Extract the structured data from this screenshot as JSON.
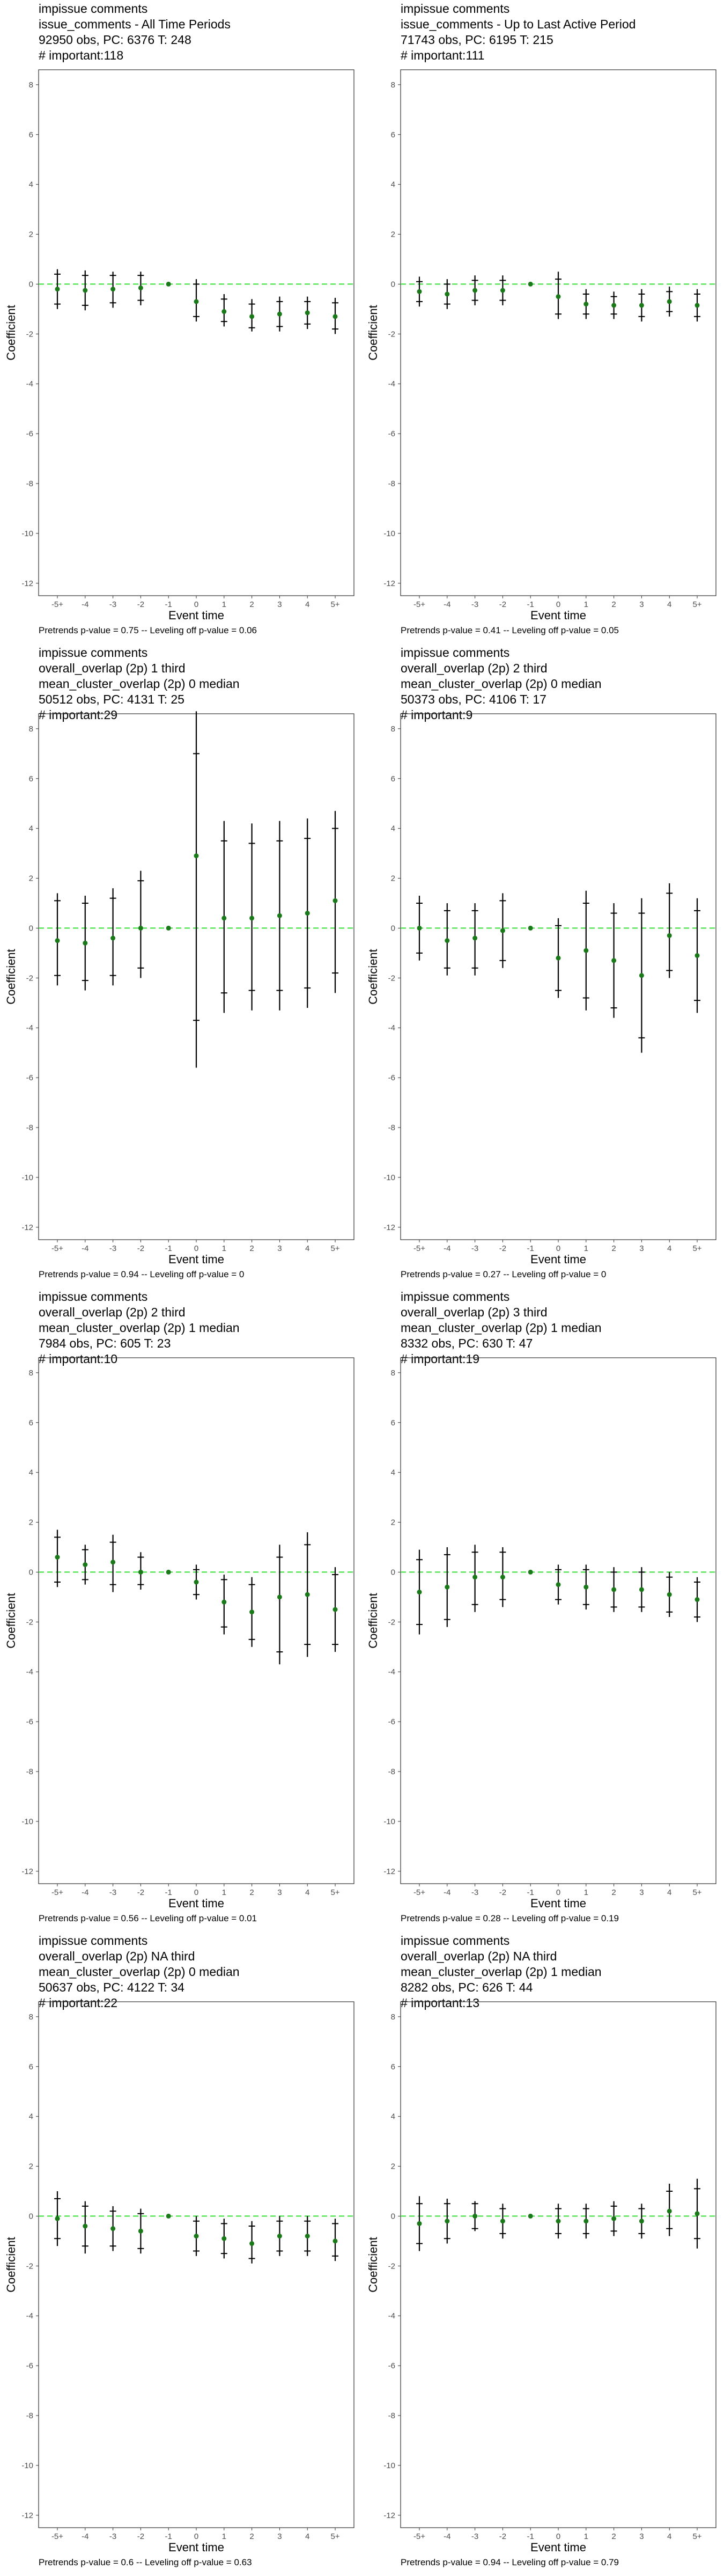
{
  "chart_data": [
    {
      "type": "scatter",
      "title": "impissue comments",
      "subtitle": [
        "issue_comments - All Time Periods",
        "92950 obs, PC: 6376 T: 248",
        "# important:118"
      ],
      "xlabel": "Event time",
      "ylabel": "Coefficient",
      "categories": [
        "-5+",
        "-4",
        "-3",
        "-2",
        "-1",
        "0",
        "1",
        "2",
        "3",
        "4",
        "5+"
      ],
      "yticks": [
        8,
        6,
        4,
        2,
        0,
        -2,
        -4,
        -6,
        -8,
        -10,
        -12
      ],
      "ylim": [
        -12.5,
        8.6
      ],
      "reference_line": 0,
      "series": [
        {
          "estimate": [
            -0.2,
            -0.25,
            -0.2,
            -0.15,
            0,
            -0.7,
            -1.1,
            -1.3,
            -1.2,
            -1.15,
            -1.3
          ],
          "ci_low": [
            -1.0,
            -1.05,
            -0.95,
            -0.85,
            0,
            -1.5,
            -1.7,
            -1.9,
            -1.9,
            -1.8,
            -2.0
          ],
          "ci_high": [
            0.6,
            0.55,
            0.5,
            0.5,
            0,
            0.2,
            -0.4,
            -0.6,
            -0.5,
            -0.5,
            -0.55
          ],
          "ci90_low": [
            -0.8,
            -0.85,
            -0.75,
            -0.65,
            0,
            -1.3,
            -1.5,
            -1.75,
            -1.7,
            -1.6,
            -1.8
          ],
          "ci90_high": [
            0.4,
            0.35,
            0.35,
            0.35,
            0,
            0.0,
            -0.6,
            -0.8,
            -0.7,
            -0.7,
            -0.75
          ]
        }
      ],
      "footer": "Pretrends p-value = 0.75 -- Leveling off p-value = 0.06"
    },
    {
      "type": "scatter",
      "title": "impissue comments",
      "subtitle": [
        "issue_comments - Up to Last Active Period",
        "71743 obs, PC: 6195 T: 215",
        "# important:111"
      ],
      "xlabel": "Event time",
      "ylabel": "Coefficient",
      "categories": [
        "-5+",
        "-4",
        "-3",
        "-2",
        "-1",
        "0",
        "1",
        "2",
        "3",
        "4",
        "5+"
      ],
      "yticks": [
        8,
        6,
        4,
        2,
        0,
        -2,
        -4,
        -6,
        -8,
        -10,
        -12
      ],
      "ylim": [
        -12.5,
        8.6
      ],
      "reference_line": 0,
      "series": [
        {
          "estimate": [
            -0.3,
            -0.4,
            -0.25,
            -0.25,
            0,
            -0.5,
            -0.8,
            -0.85,
            -0.85,
            -0.7,
            -0.85
          ],
          "ci_low": [
            -0.9,
            -1.0,
            -0.85,
            -0.85,
            0,
            -1.4,
            -1.4,
            -1.4,
            -1.5,
            -1.3,
            -1.5
          ],
          "ci_high": [
            0.3,
            0.2,
            0.35,
            0.35,
            0,
            0.5,
            -0.2,
            -0.3,
            -0.2,
            -0.1,
            -0.2
          ],
          "ci90_low": [
            -0.7,
            -0.8,
            -0.65,
            -0.65,
            0,
            -1.2,
            -1.2,
            -1.2,
            -1.3,
            -1.1,
            -1.3
          ],
          "ci90_high": [
            0.1,
            0.0,
            0.15,
            0.15,
            0,
            0.2,
            -0.4,
            -0.5,
            -0.4,
            -0.3,
            -0.4
          ]
        }
      ],
      "footer": "Pretrends p-value = 0.41 -- Leveling off p-value = 0.05"
    },
    {
      "type": "scatter",
      "title": "impissue comments",
      "subtitle": [
        "overall_overlap (2p) 1 third",
        "mean_cluster_overlap (2p) 0 median",
        "50512 obs, PC: 4131 T: 25",
        "# important:29"
      ],
      "xlabel": "Event time",
      "ylabel": "Coefficient",
      "categories": [
        "-5+",
        "-4",
        "-3",
        "-2",
        "-1",
        "0",
        "1",
        "2",
        "3",
        "4",
        "5+"
      ],
      "yticks": [
        8,
        6,
        4,
        2,
        0,
        -2,
        -4,
        -6,
        -8,
        -10,
        -12
      ],
      "ylim": [
        -12.5,
        8.6
      ],
      "reference_line": 0,
      "series": [
        {
          "estimate": [
            -0.5,
            -0.6,
            -0.4,
            0.0,
            0,
            2.9,
            0.4,
            0.4,
            0.5,
            0.6,
            1.1
          ],
          "ci_low": [
            -2.3,
            -2.5,
            -2.3,
            -2.0,
            0,
            -5.6,
            -3.4,
            -3.3,
            -3.3,
            -3.2,
            -2.6
          ],
          "ci_high": [
            1.4,
            1.3,
            1.6,
            2.3,
            0,
            8.7,
            4.3,
            4.2,
            4.3,
            4.4,
            4.7
          ],
          "ci90_low": [
            -1.9,
            -2.1,
            -1.9,
            -1.6,
            0,
            -3.7,
            -2.6,
            -2.5,
            -2.5,
            -2.4,
            -1.8
          ],
          "ci90_high": [
            1.1,
            1.0,
            1.2,
            1.9,
            0,
            7.0,
            3.5,
            3.4,
            3.5,
            3.6,
            4.0
          ]
        }
      ],
      "footer": "Pretrends p-value = 0.94 -- Leveling off p-value = 0"
    },
    {
      "type": "scatter",
      "title": "impissue comments",
      "subtitle": [
        "overall_overlap (2p) 2 third",
        "mean_cluster_overlap (2p) 0 median",
        "50373 obs, PC: 4106 T: 17",
        "# important:9"
      ],
      "xlabel": "Event time",
      "ylabel": "Coefficient",
      "categories": [
        "-5+",
        "-4",
        "-3",
        "-2",
        "-1",
        "0",
        "1",
        "2",
        "3",
        "4",
        "5+"
      ],
      "yticks": [
        8,
        6,
        4,
        2,
        0,
        -2,
        -4,
        -6,
        -8,
        -10,
        -12
      ],
      "ylim": [
        -12.5,
        8.6
      ],
      "reference_line": 0,
      "series": [
        {
          "estimate": [
            0.0,
            -0.5,
            -0.4,
            -0.1,
            0,
            -1.2,
            -0.9,
            -1.3,
            -1.9,
            -0.3,
            -1.1
          ],
          "ci_low": [
            -1.3,
            -1.9,
            -1.9,
            -1.6,
            0,
            -2.8,
            -3.3,
            -3.6,
            -5.0,
            -2.0,
            -3.4
          ],
          "ci_high": [
            1.3,
            1.0,
            1.0,
            1.4,
            0,
            0.4,
            1.5,
            1.0,
            1.2,
            1.8,
            1.2
          ],
          "ci90_low": [
            -1.0,
            -1.6,
            -1.6,
            -1.3,
            0,
            -2.5,
            -2.8,
            -3.2,
            -4.4,
            -1.7,
            -2.9
          ],
          "ci90_high": [
            1.0,
            0.7,
            0.7,
            1.1,
            0,
            0.1,
            1.0,
            0.6,
            0.6,
            1.4,
            0.7
          ]
        }
      ],
      "footer": "Pretrends p-value = 0.27 -- Leveling off p-value = 0"
    },
    {
      "type": "scatter",
      "title": "impissue comments",
      "subtitle": [
        "overall_overlap (2p) 2 third",
        "mean_cluster_overlap (2p) 1 median",
        "7984 obs, PC: 605 T: 23",
        "# important:10"
      ],
      "xlabel": "Event time",
      "ylabel": "Coefficient",
      "categories": [
        "-5+",
        "-4",
        "-3",
        "-2",
        "-1",
        "0",
        "1",
        "2",
        "3",
        "4",
        "5+"
      ],
      "yticks": [
        8,
        6,
        4,
        2,
        0,
        -2,
        -4,
        -6,
        -8,
        -10,
        -12
      ],
      "ylim": [
        -12.5,
        8.6
      ],
      "reference_line": 0,
      "series": [
        {
          "estimate": [
            0.6,
            0.3,
            0.4,
            0.0,
            0,
            -0.4,
            -1.2,
            -1.6,
            -1.0,
            -0.9,
            -1.5
          ],
          "ci_low": [
            -0.6,
            -0.5,
            -0.8,
            -0.7,
            0,
            -1.1,
            -2.5,
            -3.0,
            -3.7,
            -3.4,
            -3.2
          ],
          "ci_high": [
            1.7,
            1.1,
            1.5,
            0.8,
            0,
            0.3,
            -0.1,
            -0.2,
            1.1,
            1.6,
            0.2
          ],
          "ci90_low": [
            -0.4,
            -0.3,
            -0.5,
            -0.5,
            0,
            -0.9,
            -2.2,
            -2.7,
            -3.2,
            -2.9,
            -2.9
          ],
          "ci90_high": [
            1.4,
            0.9,
            1.2,
            0.6,
            0,
            0.1,
            -0.3,
            -0.5,
            0.6,
            1.1,
            -0.1
          ]
        }
      ],
      "footer": "Pretrends p-value = 0.56 -- Leveling off p-value = 0.01"
    },
    {
      "type": "scatter",
      "title": "impissue comments",
      "subtitle": [
        "overall_overlap (2p) 3 third",
        "mean_cluster_overlap (2p) 1 median",
        "8332 obs, PC: 630 T: 47",
        "# important:19"
      ],
      "xlabel": "Event time",
      "ylabel": "Coefficient",
      "categories": [
        "-5+",
        "-4",
        "-3",
        "-2",
        "-1",
        "0",
        "1",
        "2",
        "3",
        "4",
        "5+"
      ],
      "yticks": [
        8,
        6,
        4,
        2,
        0,
        -2,
        -4,
        -6,
        -8,
        -10,
        -12
      ],
      "ylim": [
        -12.5,
        8.6
      ],
      "reference_line": 0,
      "series": [
        {
          "estimate": [
            -0.8,
            -0.6,
            -0.2,
            -0.2,
            0,
            -0.5,
            -0.6,
            -0.7,
            -0.7,
            -0.9,
            -1.1
          ],
          "ci_low": [
            -2.5,
            -2.2,
            -1.6,
            -1.4,
            0,
            -1.3,
            -1.5,
            -1.6,
            -1.6,
            -1.8,
            -2.0
          ],
          "ci_high": [
            0.9,
            1.0,
            1.1,
            1.0,
            0,
            0.3,
            0.3,
            0.2,
            0.2,
            0.0,
            -0.2
          ],
          "ci90_low": [
            -2.1,
            -1.9,
            -1.3,
            -1.1,
            0,
            -1.1,
            -1.3,
            -1.4,
            -1.4,
            -1.6,
            -1.8
          ],
          "ci90_high": [
            0.5,
            0.7,
            0.8,
            0.8,
            0,
            0.1,
            0.1,
            0.0,
            0.0,
            -0.2,
            -0.4
          ]
        }
      ],
      "footer": "Pretrends p-value = 0.28 -- Leveling off p-value = 0.19"
    },
    {
      "type": "scatter",
      "title": "impissue comments",
      "subtitle": [
        "overall_overlap (2p) NA third",
        "mean_cluster_overlap (2p) 0 median",
        "50637 obs, PC: 4122 T: 34",
        "# important:22"
      ],
      "xlabel": "Event time",
      "ylabel": "Coefficient",
      "categories": [
        "-5+",
        "-4",
        "-3",
        "-2",
        "-1",
        "0",
        "1",
        "2",
        "3",
        "4",
        "5+"
      ],
      "yticks": [
        8,
        6,
        4,
        2,
        0,
        -2,
        -4,
        -6,
        -8,
        -10,
        -12
      ],
      "ylim": [
        -12.5,
        8.6
      ],
      "reference_line": 0,
      "series": [
        {
          "estimate": [
            -0.1,
            -0.4,
            -0.5,
            -0.6,
            0,
            -0.8,
            -0.9,
            -1.1,
            -0.8,
            -0.8,
            -1.0
          ],
          "ci_low": [
            -1.2,
            -1.5,
            -1.4,
            -1.5,
            0,
            -1.6,
            -1.7,
            -1.9,
            -1.6,
            -1.6,
            -1.8
          ],
          "ci_high": [
            1.0,
            0.6,
            0.4,
            0.3,
            0,
            0.0,
            -0.1,
            -0.2,
            0.0,
            0.0,
            -0.1
          ],
          "ci90_low": [
            -0.9,
            -1.2,
            -1.2,
            -1.3,
            0,
            -1.4,
            -1.5,
            -1.7,
            -1.4,
            -1.4,
            -1.6
          ],
          "ci90_high": [
            0.7,
            0.4,
            0.2,
            0.1,
            0,
            -0.2,
            -0.3,
            -0.4,
            -0.2,
            -0.2,
            -0.3
          ]
        }
      ],
      "footer": "Pretrends p-value = 0.6 -- Leveling off p-value = 0.63"
    },
    {
      "type": "scatter",
      "title": "impissue comments",
      "subtitle": [
        "overall_overlap (2p) NA third",
        "mean_cluster_overlap (2p) 1 median",
        "8282 obs, PC: 626 T: 44",
        "# important:13"
      ],
      "xlabel": "Event time",
      "ylabel": "Coefficient",
      "categories": [
        "-5+",
        "-4",
        "-3",
        "-2",
        "-1",
        "0",
        "1",
        "2",
        "3",
        "4",
        "5+"
      ],
      "yticks": [
        8,
        6,
        4,
        2,
        0,
        -2,
        -4,
        -6,
        -8,
        -10,
        -12
      ],
      "ylim": [
        -12.5,
        8.6
      ],
      "reference_line": 0,
      "series": [
        {
          "estimate": [
            -0.3,
            -0.2,
            0.0,
            -0.2,
            0,
            -0.2,
            -0.2,
            -0.1,
            -0.2,
            0.2,
            0.1
          ],
          "ci_low": [
            -1.4,
            -1.1,
            -0.6,
            -0.9,
            0,
            -0.9,
            -0.9,
            -0.8,
            -0.9,
            -0.8,
            -1.3
          ],
          "ci_high": [
            0.8,
            0.7,
            0.6,
            0.5,
            0,
            0.5,
            0.5,
            0.6,
            0.5,
            1.3,
            1.5
          ],
          "ci90_low": [
            -1.1,
            -0.9,
            -0.5,
            -0.7,
            0,
            -0.7,
            -0.7,
            -0.6,
            -0.7,
            -0.5,
            -0.9
          ],
          "ci90_high": [
            0.5,
            0.5,
            0.5,
            0.3,
            0,
            0.3,
            0.3,
            0.4,
            0.3,
            1.0,
            1.1
          ]
        }
      ],
      "footer": "Pretrends p-value = 0.94 -- Leveling off p-value = 0.79"
    }
  ],
  "colors": {
    "point": "#1a7a1a",
    "zero_line": "#33dd33",
    "axis_text": "#4d4d4d",
    "frame": "#333333"
  }
}
